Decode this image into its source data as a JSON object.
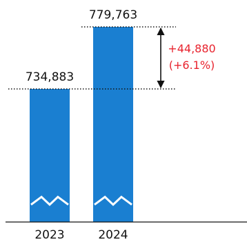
{
  "chart_data": {
    "type": "bar",
    "categories": [
      "2023",
      "2024"
    ],
    "values": [
      734883,
      779763
    ],
    "value_labels": [
      "734,883",
      "779,763"
    ],
    "axis_break": true,
    "difference": {
      "value": 44880,
      "value_label": "+44,880",
      "percent_label": "(+6.1%)"
    },
    "colors": {
      "bar": "#1a7fd1",
      "difference": "#e8232e",
      "text": "#111111"
    },
    "title": "",
    "xlabel": "",
    "ylabel": ""
  }
}
